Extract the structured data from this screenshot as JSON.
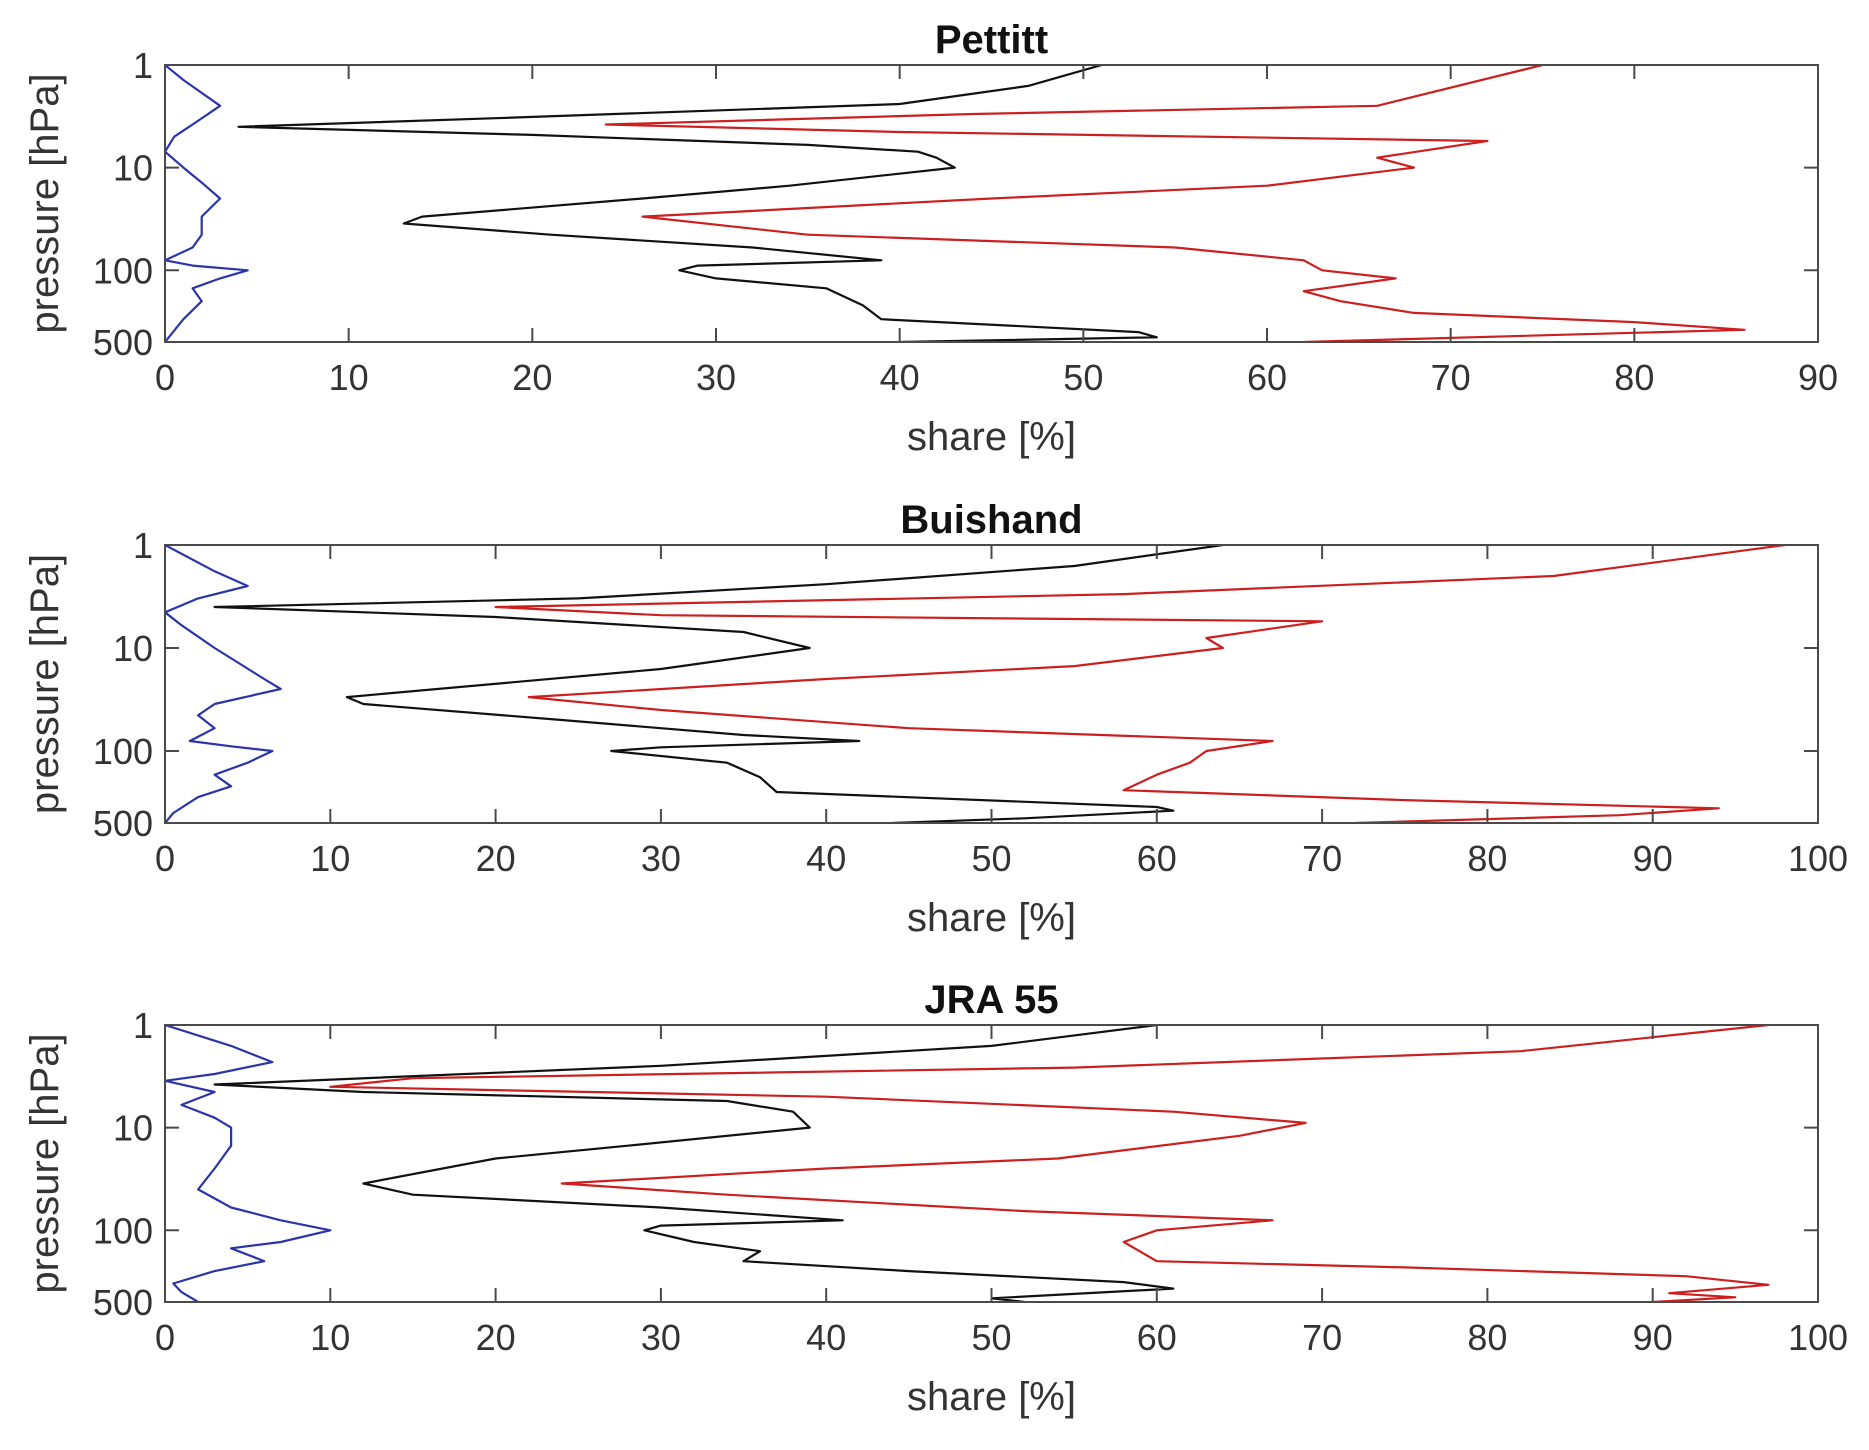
{
  "chart_data": [
    {
      "type": "line",
      "title": "Pettitt",
      "xlabel": "share [%]",
      "ylabel": "pressure [hPa]",
      "xlim": [
        0,
        90
      ],
      "xticks": [
        0,
        10,
        20,
        30,
        40,
        50,
        60,
        70,
        80,
        90
      ],
      "ylim": [
        1,
        500
      ],
      "yscale": "log",
      "yreversed": true,
      "yticks": [
        1,
        10,
        100,
        500
      ],
      "grid": false,
      "series": [
        {
          "name": "blue",
          "color": "#2b35a8",
          "points": [
            [
              0,
              1
            ],
            [
              1,
              1.4
            ],
            [
              3,
              2.5
            ],
            [
              1.5,
              3.8
            ],
            [
              0.5,
              5
            ],
            [
              0,
              7
            ],
            [
              1,
              10
            ],
            [
              2,
              14
            ],
            [
              3,
              20
            ],
            [
              2,
              30
            ],
            [
              2,
              45
            ],
            [
              1.5,
              60
            ],
            [
              0,
              80
            ],
            [
              1.5,
              90
            ],
            [
              4.5,
              100
            ],
            [
              3,
              120
            ],
            [
              1.5,
              150
            ],
            [
              2,
              200
            ],
            [
              1,
              300
            ],
            [
              0,
              500
            ]
          ]
        },
        {
          "name": "black",
          "color": "#111111",
          "points": [
            [
              51,
              1
            ],
            [
              47,
              1.6
            ],
            [
              40,
              2.4
            ],
            [
              18,
              3.3
            ],
            [
              4,
              4
            ],
            [
              20,
              4.8
            ],
            [
              35,
              6
            ],
            [
              41,
              7
            ],
            [
              42,
              8
            ],
            [
              43,
              10
            ],
            [
              34,
              15
            ],
            [
              26,
              20
            ],
            [
              14,
              30
            ],
            [
              13,
              35
            ],
            [
              21,
              45
            ],
            [
              32,
              60
            ],
            [
              39,
              80
            ],
            [
              29,
              90
            ],
            [
              28,
              100
            ],
            [
              30,
              120
            ],
            [
              36,
              150
            ],
            [
              38,
              220
            ],
            [
              39,
              300
            ],
            [
              53,
              400
            ],
            [
              54,
              450
            ],
            [
              40,
              500
            ]
          ]
        },
        {
          "name": "red",
          "color": "#cc1f1f",
          "points": [
            [
              75,
              1
            ],
            [
              66,
              2.5
            ],
            [
              44,
              3
            ],
            [
              24,
              3.8
            ],
            [
              40,
              4.5
            ],
            [
              72,
              5.5
            ],
            [
              66,
              8
            ],
            [
              68,
              10
            ],
            [
              60,
              15
            ],
            [
              45,
              20
            ],
            [
              26,
              30
            ],
            [
              35,
              45
            ],
            [
              55,
              60
            ],
            [
              62,
              80
            ],
            [
              63,
              100
            ],
            [
              67,
              120
            ],
            [
              62,
              160
            ],
            [
              64,
              200
            ],
            [
              68,
              260
            ],
            [
              80,
              320
            ],
            [
              86,
              380
            ],
            [
              75,
              430
            ],
            [
              62,
              500
            ]
          ]
        }
      ]
    },
    {
      "type": "line",
      "title": "Buishand",
      "xlabel": "share [%]",
      "ylabel": "pressure [hPa]",
      "xlim": [
        0,
        100
      ],
      "xticks": [
        0,
        10,
        20,
        30,
        40,
        50,
        60,
        70,
        80,
        90,
        100
      ],
      "ylim": [
        1,
        500
      ],
      "yscale": "log",
      "yreversed": true,
      "yticks": [
        1,
        10,
        100,
        500
      ],
      "grid": false,
      "series": [
        {
          "name": "blue",
          "color": "#2b35a8",
          "points": [
            [
              0,
              1
            ],
            [
              3,
              1.8
            ],
            [
              5,
              2.5
            ],
            [
              2,
              3.3
            ],
            [
              0,
              4.5
            ],
            [
              1,
              6
            ],
            [
              3,
              10
            ],
            [
              6,
              20
            ],
            [
              7,
              25
            ],
            [
              3,
              35
            ],
            [
              2,
              45
            ],
            [
              3,
              60
            ],
            [
              1.5,
              80
            ],
            [
              4,
              90
            ],
            [
              6.5,
              100
            ],
            [
              5,
              130
            ],
            [
              3,
              170
            ],
            [
              4,
              220
            ],
            [
              2,
              280
            ],
            [
              0.5,
              400
            ],
            [
              0,
              500
            ]
          ]
        },
        {
          "name": "black",
          "color": "#111111",
          "points": [
            [
              64,
              1
            ],
            [
              55,
              1.6
            ],
            [
              40,
              2.4
            ],
            [
              25,
              3.3
            ],
            [
              3,
              4
            ],
            [
              20,
              5
            ],
            [
              35,
              7
            ],
            [
              39,
              10
            ],
            [
              30,
              16
            ],
            [
              11,
              30
            ],
            [
              12,
              35
            ],
            [
              24,
              50
            ],
            [
              35,
              70
            ],
            [
              42,
              80
            ],
            [
              30,
              92
            ],
            [
              27,
              100
            ],
            [
              34,
              130
            ],
            [
              36,
              180
            ],
            [
              37,
              250
            ],
            [
              60,
              350
            ],
            [
              61,
              380
            ],
            [
              52,
              450
            ],
            [
              44,
              500
            ]
          ]
        },
        {
          "name": "red",
          "color": "#cc1f1f",
          "points": [
            [
              98,
              1
            ],
            [
              84,
              2
            ],
            [
              58,
              3
            ],
            [
              20,
              4
            ],
            [
              30,
              4.8
            ],
            [
              70,
              5.5
            ],
            [
              63,
              8
            ],
            [
              64,
              10
            ],
            [
              55,
              15
            ],
            [
              40,
              20
            ],
            [
              22,
              30
            ],
            [
              30,
              40
            ],
            [
              45,
              60
            ],
            [
              67,
              80
            ],
            [
              63,
              100
            ],
            [
              62,
              130
            ],
            [
              60,
              170
            ],
            [
              58,
              240
            ],
            [
              75,
              300
            ],
            [
              94,
              360
            ],
            [
              88,
              420
            ],
            [
              72,
              500
            ]
          ]
        }
      ]
    },
    {
      "type": "line",
      "title": "JRA 55",
      "xlabel": "share [%]",
      "ylabel": "pressure [hPa]",
      "xlim": [
        0,
        100
      ],
      "xticks": [
        0,
        10,
        20,
        30,
        40,
        50,
        60,
        70,
        80,
        90,
        100
      ],
      "ylim": [
        1,
        500
      ],
      "yscale": "log",
      "yreversed": true,
      "yticks": [
        1,
        10,
        100,
        500
      ],
      "grid": false,
      "series": [
        {
          "name": "blue",
          "color": "#2b35a8",
          "points": [
            [
              0,
              1
            ],
            [
              4,
              1.6
            ],
            [
              6.5,
              2.3
            ],
            [
              3,
              3
            ],
            [
              0,
              3.5
            ],
            [
              3,
              4.5
            ],
            [
              1,
              6
            ],
            [
              3,
              8
            ],
            [
              4,
              10
            ],
            [
              4,
              15
            ],
            [
              3,
              25
            ],
            [
              2,
              40
            ],
            [
              4,
              60
            ],
            [
              7,
              80
            ],
            [
              10,
              100
            ],
            [
              7,
              130
            ],
            [
              4,
              150
            ],
            [
              6,
              200
            ],
            [
              3,
              250
            ],
            [
              0.5,
              330
            ],
            [
              1,
              400
            ],
            [
              2,
              500
            ]
          ]
        },
        {
          "name": "black",
          "color": "#111111",
          "points": [
            [
              60,
              1
            ],
            [
              50,
              1.6
            ],
            [
              30,
              2.5
            ],
            [
              3,
              3.8
            ],
            [
              12,
              4.5
            ],
            [
              34,
              5.5
            ],
            [
              38,
              7
            ],
            [
              39,
              10
            ],
            [
              28,
              15
            ],
            [
              20,
              20
            ],
            [
              12,
              35
            ],
            [
              15,
              45
            ],
            [
              30,
              60
            ],
            [
              41,
              80
            ],
            [
              30,
              90
            ],
            [
              29,
              100
            ],
            [
              32,
              130
            ],
            [
              36,
              160
            ],
            [
              35,
              200
            ],
            [
              45,
              250
            ],
            [
              58,
              320
            ],
            [
              61,
              370
            ],
            [
              50,
              460
            ],
            [
              52,
              500
            ]
          ]
        },
        {
          "name": "red",
          "color": "#cc1f1f",
          "points": [
            [
              97,
              1
            ],
            [
              82,
              1.8
            ],
            [
              55,
              2.6
            ],
            [
              15,
              3.3
            ],
            [
              10,
              4
            ],
            [
              40,
              5
            ],
            [
              61,
              7
            ],
            [
              69,
              9
            ],
            [
              65,
              12
            ],
            [
              54,
              20
            ],
            [
              40,
              25
            ],
            [
              24,
              35
            ],
            [
              34,
              45
            ],
            [
              52,
              65
            ],
            [
              67,
              80
            ],
            [
              60,
              100
            ],
            [
              58,
              130
            ],
            [
              60,
              200
            ],
            [
              75,
              230
            ],
            [
              92,
              280
            ],
            [
              97,
              340
            ],
            [
              91,
              410
            ],
            [
              95,
              450
            ],
            [
              90,
              500
            ]
          ]
        }
      ]
    }
  ]
}
